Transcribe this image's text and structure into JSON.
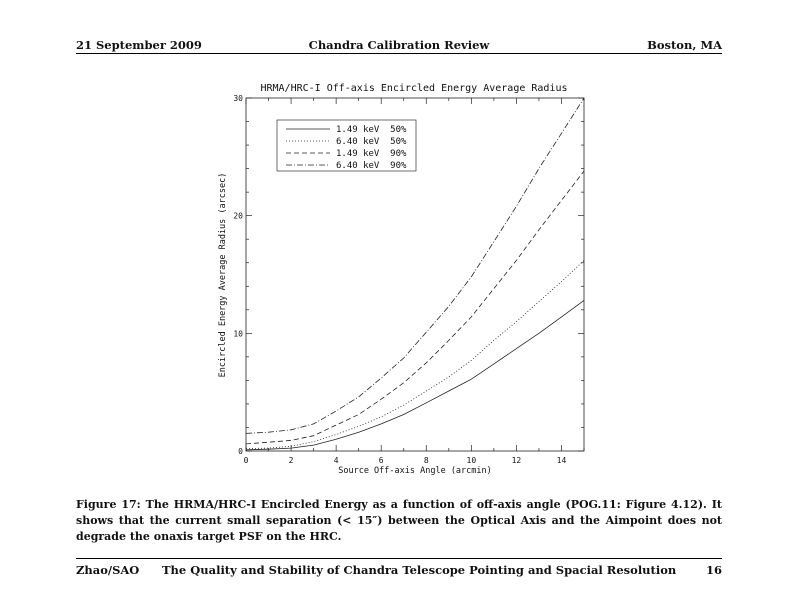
{
  "header": {
    "date": "21 September 2009",
    "title": "Chandra Calibration Review",
    "location": "Boston, MA"
  },
  "caption": {
    "label": "Figure 17:",
    "text": "The HRMA/HRC-I Encircled Energy as a function of off-axis angle (POG.11: Figure 4.12). It shows that the current small separation (< 15″) between the Optical Axis and the Aimpoint does not degrade the onaxis target PSF on the HRC."
  },
  "footer": {
    "author": "Zhao/SAO",
    "title": "The Quality and Stability of Chandra Telescope Pointing and Spacial Resolution",
    "page": "16"
  },
  "chart_data": {
    "type": "line",
    "title": "HRMA/HRC-I Off-axis Encircled Energy Average Radius",
    "xlabel": "Source Off-axis Angle (arcmin)",
    "ylabel": "Encircled Energy Average Radius (arcsec)",
    "xlim": [
      0,
      15
    ],
    "ylim": [
      0,
      30
    ],
    "x_ticks": [
      "0",
      "2",
      "4",
      "6",
      "8",
      "10",
      "12",
      "14"
    ],
    "y_ticks": [
      "0",
      "10",
      "20",
      "30"
    ],
    "legend_position": "top-left",
    "x": [
      0,
      1,
      2,
      3,
      4,
      5,
      6,
      7,
      8,
      9,
      10,
      11,
      12,
      13,
      14,
      15
    ],
    "series": [
      {
        "name": "1.49 keV  50%",
        "style": "solid",
        "values": [
          0.1,
          0.15,
          0.25,
          0.5,
          1.0,
          1.6,
          2.3,
          3.1,
          4.1,
          5.1,
          6.1,
          7.4,
          8.7,
          10.0,
          11.4,
          12.8
        ]
      },
      {
        "name": "6.40 keV  50%",
        "style": "dotted",
        "values": [
          0.2,
          0.25,
          0.4,
          0.8,
          1.4,
          2.1,
          2.9,
          3.9,
          5.1,
          6.3,
          7.7,
          9.4,
          11.0,
          12.7,
          14.4,
          16.2
        ]
      },
      {
        "name": "1.49 keV  90%",
        "style": "dashed",
        "values": [
          0.6,
          0.75,
          0.9,
          1.3,
          2.2,
          3.1,
          4.4,
          5.8,
          7.5,
          9.4,
          11.4,
          13.8,
          16.2,
          18.8,
          21.3,
          23.8
        ]
      },
      {
        "name": "6.40 keV  90%",
        "style": "dashdot",
        "values": [
          1.5,
          1.6,
          1.8,
          2.3,
          3.4,
          4.6,
          6.2,
          7.9,
          10.1,
          12.3,
          14.8,
          17.8,
          20.8,
          24.0,
          27.0,
          30.0
        ]
      }
    ]
  }
}
